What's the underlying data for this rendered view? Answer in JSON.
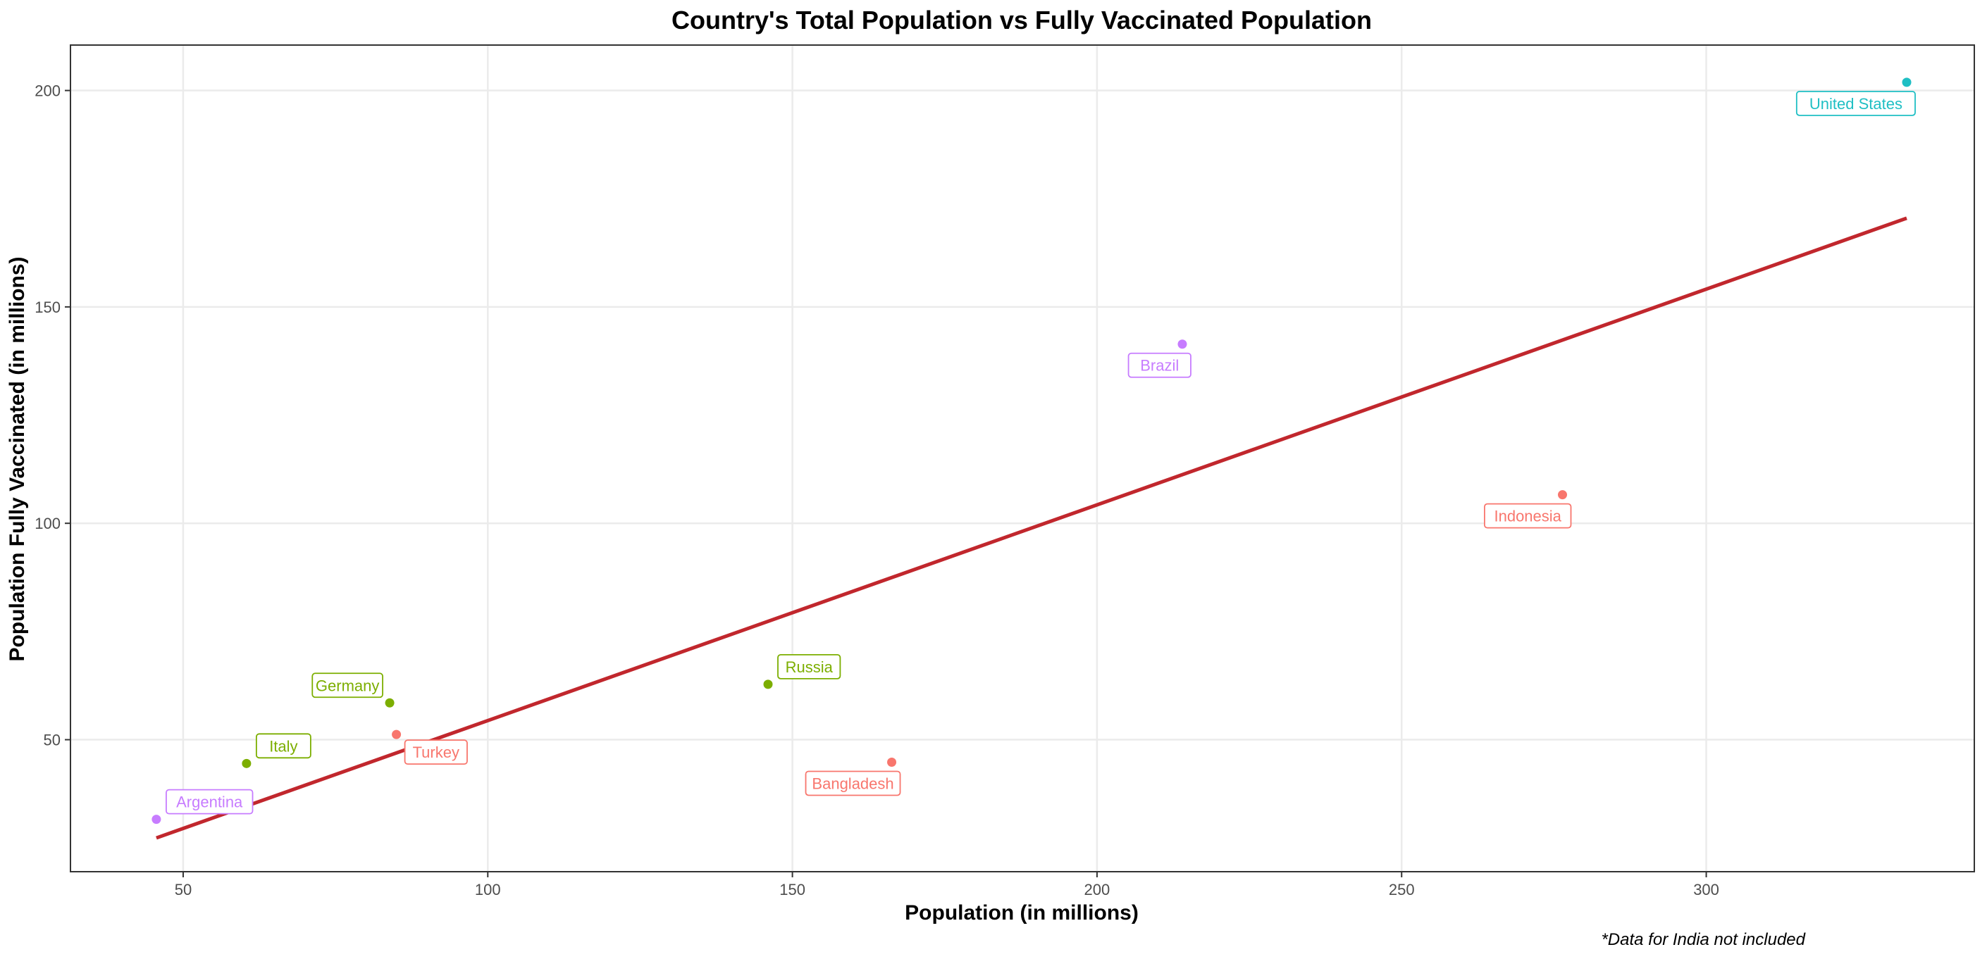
{
  "chart_data": {
    "type": "scatter",
    "title": "Country's Total Population vs Fully Vaccinated Population",
    "xlabel": "Population (in millions)",
    "ylabel": "Population Fully Vaccinated (in millions)",
    "caption": "*Data for India not included",
    "xlim": [
      31.5,
      344
    ],
    "ylim": [
      19.5,
      210.5
    ],
    "x_ticks": [
      50,
      100,
      150,
      200,
      250,
      300
    ],
    "y_ticks": [
      50,
      100,
      150,
      200
    ],
    "grid": true,
    "legend": "none",
    "points": [
      {
        "label": "United States",
        "x": 332.9,
        "y": 201.9,
        "color": "#1fbfc4",
        "label_side": "below-left"
      },
      {
        "label": "Brazil",
        "x": 214.0,
        "y": 141.4,
        "color": "#c77cff",
        "label_side": "below-left"
      },
      {
        "label": "Indonesia",
        "x": 276.4,
        "y": 106.6,
        "color": "#f8766d",
        "label_side": "below-left"
      },
      {
        "label": "Russia",
        "x": 146.0,
        "y": 62.8,
        "color": "#7cae00",
        "label_side": "above-right"
      },
      {
        "label": "Germany",
        "x": 83.9,
        "y": 58.5,
        "color": "#7cae00",
        "label_side": "above-left"
      },
      {
        "label": "Turkey",
        "x": 85.0,
        "y": 51.2,
        "color": "#f8766d",
        "label_side": "below-right"
      },
      {
        "label": "Italy",
        "x": 60.4,
        "y": 44.5,
        "color": "#7cae00",
        "label_side": "above-right"
      },
      {
        "label": "Bangladesh",
        "x": 166.3,
        "y": 44.8,
        "color": "#f8766d",
        "label_side": "below-left"
      },
      {
        "label": "Argentina",
        "x": 45.6,
        "y": 31.6,
        "color": "#c77cff",
        "label_side": "above-right"
      }
    ],
    "fit_line": {
      "x": [
        45.6,
        332.9
      ],
      "y": [
        27.3,
        170.5
      ],
      "color": "#c1272d"
    }
  }
}
